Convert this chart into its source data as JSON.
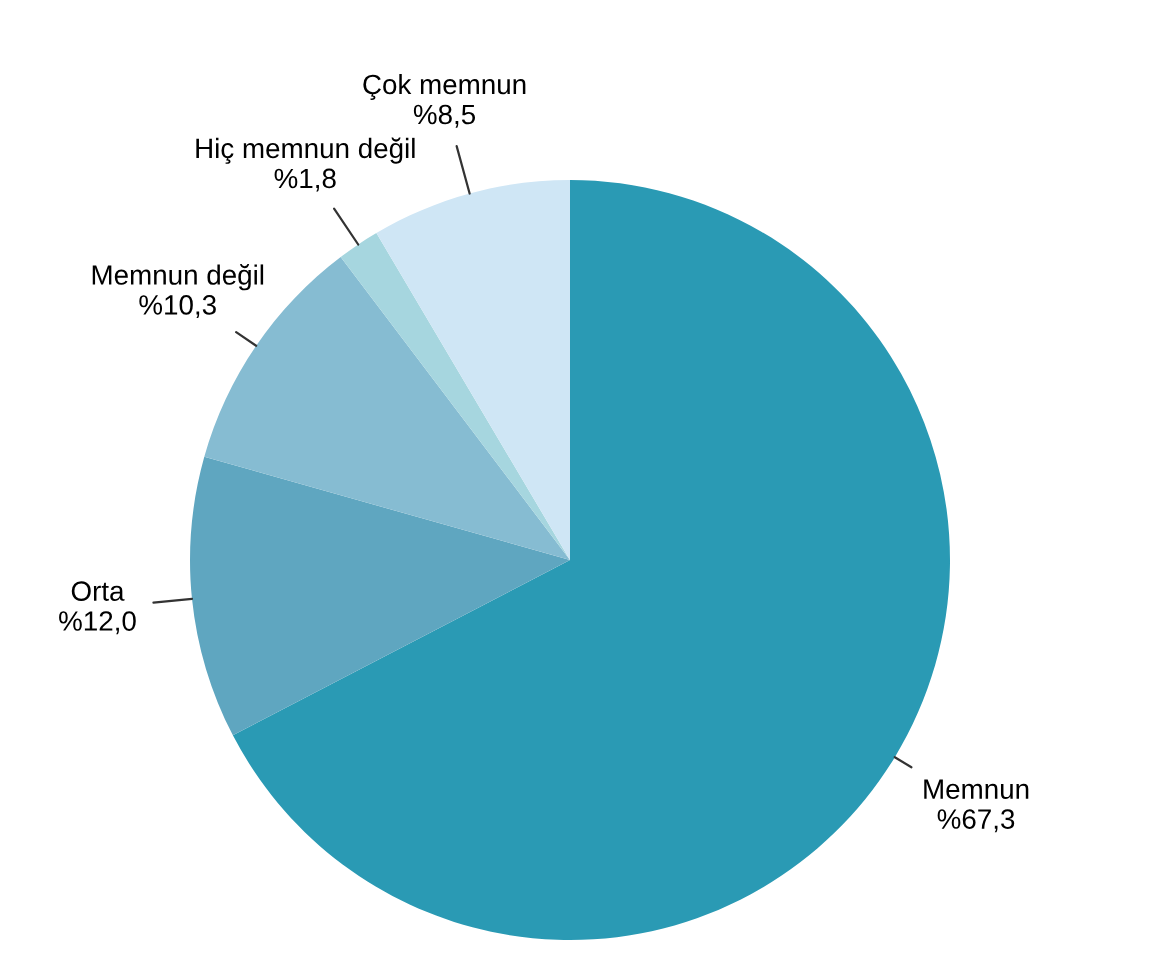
{
  "chart_data": {
    "type": "pie",
    "categories": [
      "Memnun",
      "Orta",
      "Memnun değil",
      "Hiç memnun değil",
      "Çok memnun"
    ],
    "values": [
      67.3,
      12.0,
      10.3,
      1.8,
      8.5
    ],
    "value_labels": [
      "%67,3",
      "%12,0",
      "%10,3",
      "%1,8",
      "%8,5"
    ],
    "colors": [
      "#2a9ab4",
      "#5fa6c0",
      "#86bcd2",
      "#a6d6df",
      "#cfe6f5"
    ]
  }
}
